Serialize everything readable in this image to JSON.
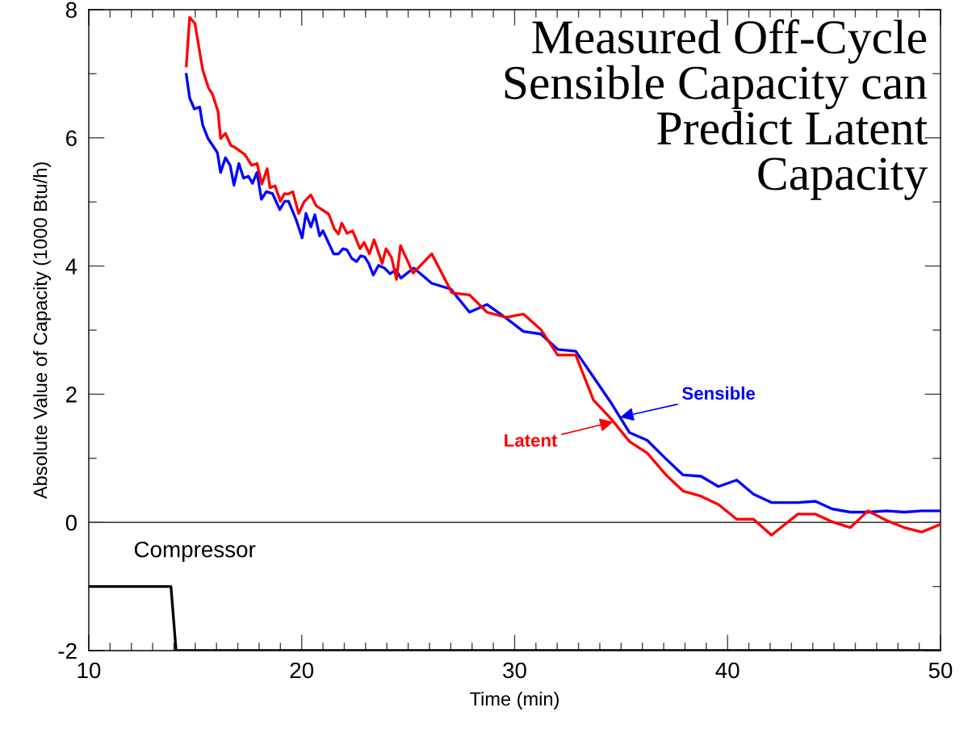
{
  "chart_data": {
    "type": "line",
    "title": "Measured Off-Cycle\nSensible Capacity can\nPredict Latent\nCapacity",
    "xlabel": "Time (min)",
    "ylabel": "Absolute Value of Capacity (1000 Btu/h)",
    "xlim": [
      10,
      50
    ],
    "ylim": [
      -2,
      8
    ],
    "xticks": [
      10,
      {
        "value": 11,
        "label": null
      },
      {
        "value": 12,
        "label": null
      },
      {
        "value": 13,
        "label": null
      },
      {
        "value": 14,
        "label": null
      },
      {
        "value": 15,
        "label": null
      },
      {
        "value": 16,
        "label": null
      },
      {
        "value": 17,
        "label": null
      },
      {
        "value": 18,
        "label": null
      },
      {
        "value": 19,
        "label": null
      },
      20,
      {
        "value": 21,
        "label": null
      },
      {
        "value": 22,
        "label": null
      },
      {
        "value": 23,
        "label": null
      },
      {
        "value": 24,
        "label": null
      },
      {
        "value": 25,
        "label": null
      },
      {
        "value": 26,
        "label": null
      },
      {
        "value": 27,
        "label": null
      },
      {
        "value": 28,
        "label": null
      },
      {
        "value": 29,
        "label": null
      },
      30,
      {
        "value": 31,
        "label": null
      },
      {
        "value": 32,
        "label": null
      },
      {
        "value": 33,
        "label": null
      },
      {
        "value": 34,
        "label": null
      },
      {
        "value": 35,
        "label": null
      },
      {
        "value": 36,
        "label": null
      },
      {
        "value": 37,
        "label": null
      },
      {
        "value": 38,
        "label": null
      },
      {
        "value": 39,
        "label": null
      },
      40,
      {
        "value": 41,
        "label": null
      },
      {
        "value": 42,
        "label": null
      },
      {
        "value": 43,
        "label": null
      },
      {
        "value": 44,
        "label": null
      },
      {
        "value": 45,
        "label": null
      },
      {
        "value": 46,
        "label": null
      },
      {
        "value": 47,
        "label": null
      },
      {
        "value": 48,
        "label": null
      },
      {
        "value": 49,
        "label": null
      },
      50
    ],
    "yticks": [
      {
        "value": -2,
        "label": "-2"
      },
      {
        "value": -1,
        "label": null
      },
      0,
      {
        "value": 1,
        "label": null
      },
      2,
      {
        "value": 3,
        "label": null
      },
      4,
      {
        "value": 5,
        "label": null
      },
      6,
      {
        "value": 7,
        "label": null
      },
      8
    ],
    "ref_lines": [
      {
        "axis": "y",
        "value": 0,
        "color": "#000000"
      }
    ],
    "annotations": [
      {
        "text": "Sensible",
        "x": 34.95,
        "y": 1.64
      },
      {
        "text": "Latent",
        "x": 34.64,
        "y": 1.57
      }
    ],
    "grid": false,
    "legend": false,
    "marker": "none",
    "line_style": "solid",
    "series": [
      {
        "color": "#0000ff",
        "x": [
          14.58,
          14.74,
          14.96,
          15.21,
          15.35,
          15.6,
          16.04,
          16.19,
          16.42,
          16.64,
          16.82,
          17.05,
          17.27,
          17.5,
          17.69,
          17.9,
          18.11,
          18.34,
          18.63,
          18.97,
          19.2,
          19.38,
          19.73,
          20.02,
          20.2,
          20.43,
          20.62,
          20.84,
          21.0,
          21.5,
          21.73,
          21.94,
          22.13,
          22.35,
          22.58,
          22.77,
          22.96,
          23.15,
          23.36,
          23.61,
          23.88,
          24.15,
          24.43,
          24.66,
          25.26,
          26.11,
          27.0,
          27.88,
          28.7,
          29.59,
          30.41,
          31.23,
          32.02,
          32.87,
          33.7,
          34.52,
          35.4,
          36.23,
          37.11,
          37.91,
          38.75,
          39.57,
          40.43,
          41.22,
          42.06,
          43.3,
          44.12,
          44.91,
          45.77,
          46.59,
          47.47,
          48.29,
          49.12,
          50.0
        ],
        "values": [
          6.99,
          6.62,
          6.45,
          6.48,
          6.2,
          5.99,
          5.77,
          5.46,
          5.69,
          5.57,
          5.26,
          5.6,
          5.37,
          5.4,
          5.29,
          5.46,
          5.04,
          5.16,
          5.13,
          4.88,
          5.01,
          5.01,
          4.73,
          4.44,
          4.82,
          4.61,
          4.8,
          4.47,
          4.55,
          4.19,
          4.19,
          4.27,
          4.25,
          4.12,
          4.07,
          4.16,
          4.14,
          4.04,
          3.86,
          4.01,
          3.97,
          3.88,
          3.94,
          3.81,
          3.97,
          3.73,
          3.64,
          3.28,
          3.4,
          3.19,
          2.98,
          2.94,
          2.7,
          2.67,
          2.27,
          1.87,
          1.4,
          1.28,
          0.99,
          0.74,
          0.72,
          0.56,
          0.66,
          0.44,
          0.31,
          0.31,
          0.33,
          0.21,
          0.16,
          0.16,
          0.18,
          0.16,
          0.18,
          0.18
        ]
      },
      {
        "color": "#ff0000",
        "x": [
          14.58,
          14.74,
          14.99,
          15.35,
          15.62,
          15.81,
          16.07,
          16.19,
          16.42,
          16.67,
          16.82,
          17.33,
          17.65,
          17.9,
          18.13,
          18.38,
          18.51,
          18.75,
          19.0,
          19.19,
          19.35,
          19.58,
          19.86,
          20.11,
          20.43,
          20.68,
          21.27,
          21.53,
          21.73,
          21.88,
          22.13,
          22.39,
          22.74,
          22.93,
          23.18,
          23.4,
          23.78,
          23.96,
          24.22,
          24.45,
          24.64,
          25.23,
          26.11,
          27.06,
          27.88,
          28.7,
          29.59,
          30.41,
          31.23,
          32.02,
          32.87,
          33.7,
          34.52,
          35.4,
          36.23,
          37.11,
          37.91,
          38.75,
          39.57,
          40.43,
          41.22,
          42.06,
          43.3,
          44.12,
          44.91,
          45.77,
          46.59,
          47.47,
          48.29,
          49.12,
          50.0
        ],
        "values": [
          7.12,
          7.88,
          7.78,
          7.06,
          6.78,
          6.68,
          6.41,
          5.99,
          6.07,
          5.88,
          5.86,
          5.74,
          5.57,
          5.6,
          5.28,
          5.52,
          5.22,
          5.25,
          5.01,
          5.13,
          5.12,
          5.16,
          4.82,
          5.0,
          5.11,
          4.94,
          4.81,
          4.58,
          4.5,
          4.67,
          4.51,
          4.55,
          4.27,
          4.37,
          4.19,
          4.41,
          4.04,
          4.27,
          4.13,
          3.79,
          4.32,
          3.89,
          4.19,
          3.58,
          3.55,
          3.28,
          3.2,
          3.25,
          3.01,
          2.61,
          2.61,
          1.91,
          1.62,
          1.26,
          1.08,
          0.74,
          0.49,
          0.41,
          0.28,
          0.05,
          0.05,
          -0.2,
          0.13,
          0.13,
          0.01,
          -0.08,
          0.18,
          0.03,
          -0.08,
          -0.15,
          -0.03
        ]
      },
      {
        "name": "Compressor",
        "color": "#000000",
        "x": [
          10,
          13.86,
          14.1,
          50
        ],
        "values": [
          -1,
          -1,
          -2,
          -2
        ]
      }
    ]
  }
}
